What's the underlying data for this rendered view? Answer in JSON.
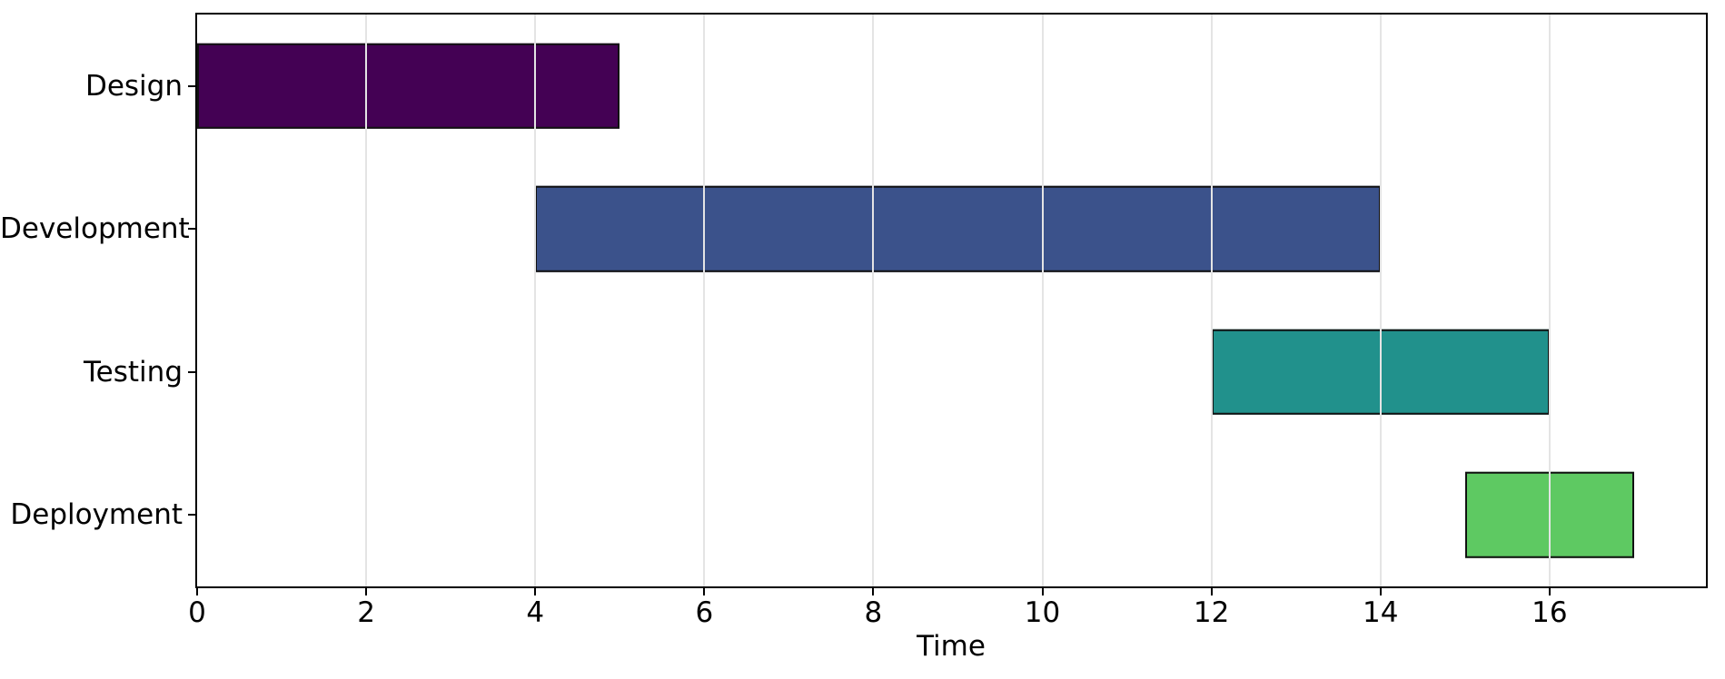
{
  "figure": {
    "background": "#ffffff",
    "text_color": "#000000"
  },
  "chart_data": {
    "type": "bar",
    "subtype": "horizontal-gantt",
    "title": "",
    "xlabel": "Time",
    "ylabel": "",
    "categories": [
      "Design",
      "Development",
      "Testing",
      "Deployment"
    ],
    "bars": [
      {
        "task": "Design",
        "start": 0,
        "end": 5,
        "duration": 5,
        "color": "#440154"
      },
      {
        "task": "Development",
        "start": 4,
        "end": 14,
        "duration": 10,
        "color": "#3b528b"
      },
      {
        "task": "Testing",
        "start": 12,
        "end": 16,
        "duration": 4,
        "color": "#21918c"
      },
      {
        "task": "Deployment",
        "start": 15,
        "end": 17,
        "duration": 2,
        "color": "#5ec962"
      }
    ],
    "xlim": [
      0,
      17.85
    ],
    "xticks": [
      0,
      2,
      4,
      6,
      8,
      10,
      12,
      14,
      16
    ],
    "xtick_labels": [
      "0",
      "2",
      "4",
      "6",
      "8",
      "10",
      "12",
      "14",
      "16"
    ],
    "grid": true,
    "grid_axis": "x",
    "grid_color": "#e4e4e4",
    "bar_edge_color": "#111111",
    "bar_height_fraction": 0.6,
    "axis_color": "#000000",
    "legend": null
  }
}
